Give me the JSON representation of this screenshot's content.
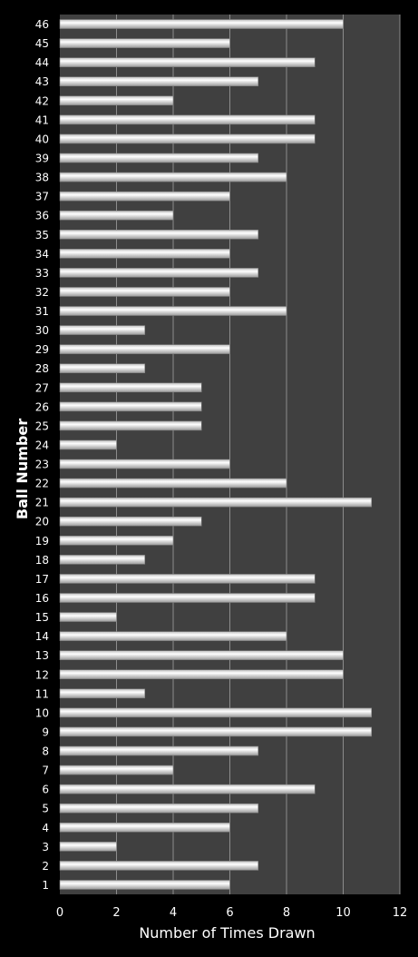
{
  "chart_data": {
    "type": "bar",
    "orientation": "horizontal",
    "categories": [
      "1",
      "2",
      "3",
      "4",
      "5",
      "6",
      "7",
      "8",
      "9",
      "10",
      "11",
      "12",
      "13",
      "14",
      "15",
      "16",
      "17",
      "18",
      "19",
      "20",
      "21",
      "22",
      "23",
      "24",
      "25",
      "26",
      "27",
      "28",
      "29",
      "30",
      "31",
      "32",
      "33",
      "34",
      "35",
      "36",
      "37",
      "38",
      "39",
      "40",
      "41",
      "42",
      "43",
      "44",
      "45",
      "46"
    ],
    "values": [
      6,
      7,
      2,
      6,
      7,
      9,
      4,
      7,
      11,
      11,
      3,
      10,
      10,
      8,
      2,
      9,
      9,
      3,
      4,
      5,
      11,
      8,
      6,
      2,
      5,
      5,
      5,
      3,
      6,
      3,
      8,
      6,
      7,
      6,
      7,
      4,
      6,
      8,
      7,
      9,
      9,
      4,
      7,
      9,
      6,
      10
    ],
    "xlabel": "Number of Times Drawn",
    "ylabel": "Ball Number",
    "xlim": [
      0,
      12
    ],
    "xticks": [
      "0",
      "2",
      "4",
      "6",
      "8",
      "10",
      "12"
    ],
    "grid": "vertical",
    "legend": "none",
    "colors": {
      "background": "#000000",
      "plot_area": "#404040",
      "gridline": "#8c8c8c",
      "bar_light": "#ffffff",
      "bar_dark": "#a6a6a6",
      "text": "#ffffff"
    }
  }
}
